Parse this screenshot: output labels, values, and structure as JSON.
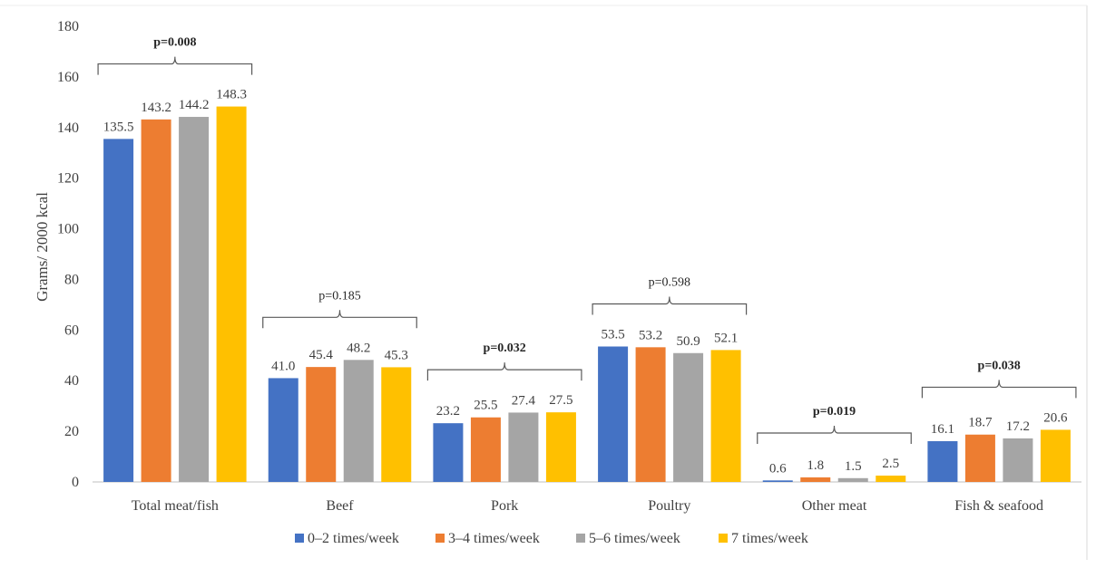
{
  "chart_data": {
    "type": "bar",
    "title": "",
    "xlabel": "",
    "ylabel": "Grams/ 2000 kcal",
    "ylim": [
      0,
      180
    ],
    "yticks": [
      0,
      20,
      40,
      60,
      80,
      100,
      120,
      140,
      160,
      180
    ],
    "grid": false,
    "legend_position": "bottom",
    "categories": [
      "Total meat/fish",
      "Beef",
      "Pork",
      "Poultry",
      "Other meat",
      "Fish & seafood"
    ],
    "series": [
      {
        "name": "0–2 times/week",
        "color": "#4472C4",
        "values": [
          135.5,
          41.0,
          23.2,
          53.5,
          0.6,
          16.1
        ],
        "labels": [
          "135.5",
          "41.0",
          "23.2",
          "53.5",
          "0.6",
          "16.1"
        ]
      },
      {
        "name": "3–4 times/week",
        "color": "#ED7D31",
        "values": [
          143.2,
          45.4,
          25.5,
          53.2,
          1.8,
          18.7
        ],
        "labels": [
          "143.2",
          "45.4",
          "25.5",
          "53.2",
          "1.8",
          "18.7"
        ]
      },
      {
        "name": "5–6 times/week",
        "color": "#A5A5A5",
        "values": [
          144.2,
          48.2,
          27.4,
          50.9,
          1.5,
          17.2
        ],
        "labels": [
          "144.2",
          "48.2",
          "27.4",
          "50.9",
          "1.5",
          "17.2"
        ]
      },
      {
        "name": "7 times/week",
        "color": "#FFC000",
        "values": [
          148.3,
          45.3,
          27.5,
          52.1,
          2.5,
          20.6
        ],
        "labels": [
          "148.3",
          "45.3",
          "27.5",
          "52.1",
          "2.5",
          "20.6"
        ]
      }
    ],
    "annotations": [
      {
        "category": "Total meat/fish",
        "text": "p=0.008",
        "bold": true
      },
      {
        "category": "Beef",
        "text": "p=0.185",
        "bold": false
      },
      {
        "category": "Pork",
        "text": "p=0.032",
        "bold": true
      },
      {
        "category": "Poultry",
        "text": "p=0.598",
        "bold": false
      },
      {
        "category": "Other meat",
        "text": "p=0.019",
        "bold": true
      },
      {
        "category": "Fish & seafood",
        "text": "p=0.038",
        "bold": true
      }
    ]
  }
}
